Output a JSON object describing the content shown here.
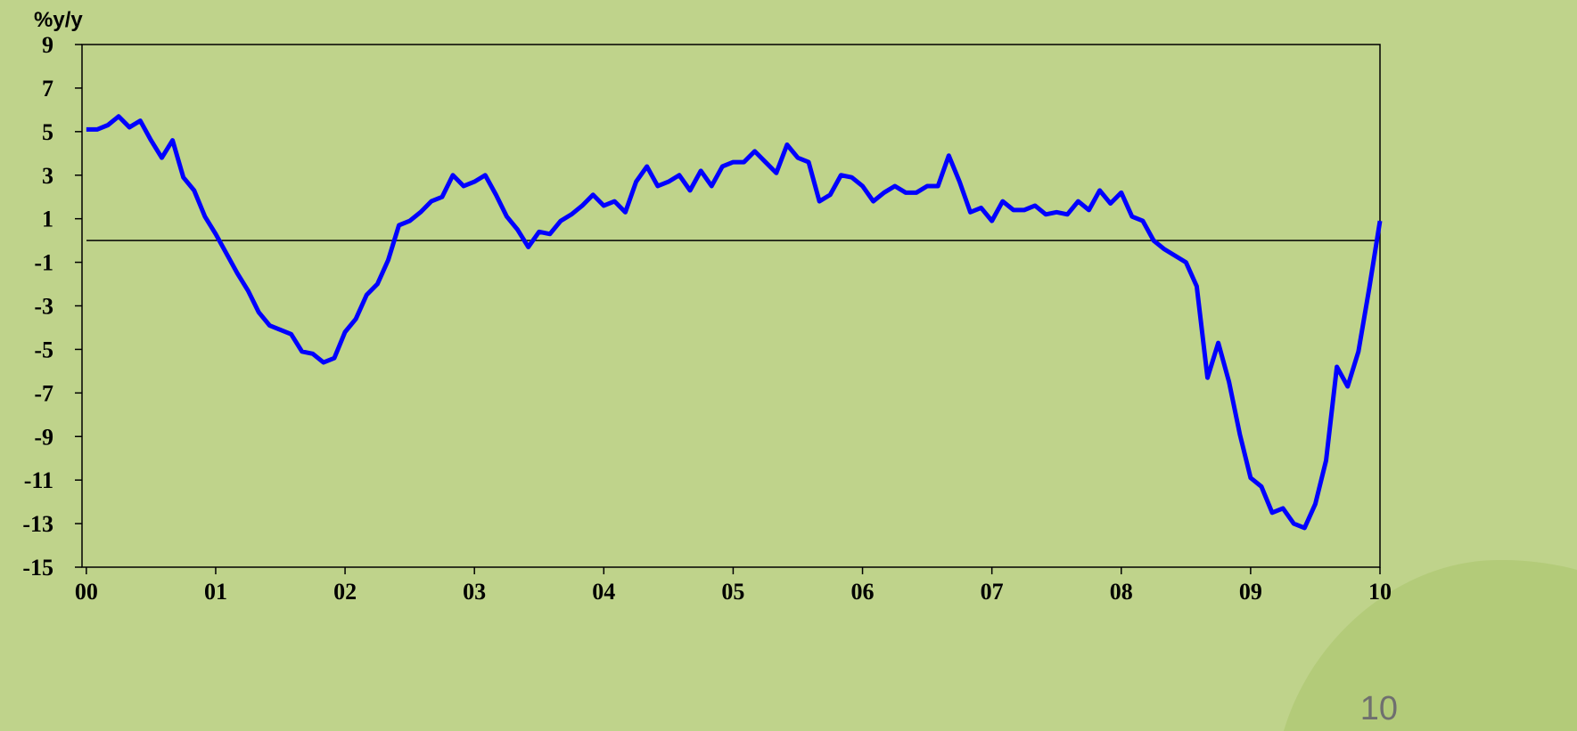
{
  "chart_data": {
    "type": "line",
    "y_label": "%y/y",
    "x": [
      0,
      1,
      2,
      3,
      4,
      5,
      6,
      7,
      8,
      9,
      10,
      11,
      12,
      13,
      14,
      15,
      16,
      17,
      18,
      19,
      20,
      21,
      22,
      23,
      24,
      25,
      26,
      27,
      28,
      29,
      30,
      31,
      32,
      33,
      34,
      35,
      36,
      37,
      38,
      39,
      40,
      41,
      42,
      43,
      44,
      45,
      46,
      47,
      48,
      49,
      50,
      51,
      52,
      53,
      54,
      55,
      56,
      57,
      58,
      59,
      60,
      61,
      62,
      63,
      64,
      65,
      66,
      67,
      68,
      69,
      70,
      71,
      72,
      73,
      74,
      75,
      76,
      77,
      78,
      79,
      80,
      81,
      82,
      83,
      84,
      85,
      86,
      87,
      88,
      89,
      90,
      91,
      92,
      93,
      94,
      95,
      96,
      97,
      98,
      99,
      100,
      101,
      102,
      103,
      104,
      105,
      106,
      107,
      108,
      109,
      110,
      111,
      112,
      113,
      114,
      115,
      116,
      117,
      118,
      119,
      120
    ],
    "series": [
      {
        "name": "%y/y",
        "color": "#0000ff",
        "values": [
          5.1,
          5.1,
          5.3,
          5.7,
          5.2,
          5.5,
          4.6,
          3.8,
          4.6,
          2.9,
          2.3,
          1.1,
          0.3,
          -0.6,
          -1.5,
          -2.3,
          -3.3,
          -3.9,
          -4.1,
          -4.3,
          -5.1,
          -5.2,
          -5.6,
          -5.4,
          -4.2,
          -3.6,
          -2.5,
          -2.0,
          -0.9,
          0.7,
          0.9,
          1.3,
          1.8,
          2.0,
          3.0,
          2.5,
          2.7,
          3.0,
          2.1,
          1.1,
          0.5,
          -0.3,
          0.4,
          0.3,
          0.9,
          1.2,
          1.6,
          2.1,
          1.6,
          1.8,
          1.3,
          2.7,
          3.4,
          2.5,
          2.7,
          3.0,
          2.3,
          3.2,
          2.5,
          3.4,
          3.6,
          3.6,
          4.1,
          3.6,
          3.1,
          4.4,
          3.8,
          3.6,
          1.8,
          2.1,
          3.0,
          2.9,
          2.5,
          1.8,
          2.2,
          2.5,
          2.2,
          2.2,
          2.5,
          2.5,
          3.9,
          2.7,
          1.3,
          1.5,
          0.9,
          1.8,
          1.4,
          1.4,
          1.6,
          1.2,
          1.3,
          1.2,
          1.8,
          1.4,
          2.3,
          1.7,
          2.2,
          1.1,
          0.9,
          0.0,
          -0.4,
          -0.7,
          -1.0,
          -2.1,
          -6.3,
          -4.7,
          -6.5,
          -8.9,
          -10.9,
          -11.3,
          -12.5,
          -12.3,
          -13.0,
          -13.2,
          -12.1,
          -10.1,
          -5.8,
          -6.7,
          -5.1,
          -2.2,
          0.9
        ]
      }
    ],
    "xlim": [
      -0.4,
      120
    ],
    "xticks": [
      {
        "value": 0,
        "label": "00"
      },
      {
        "value": 12,
        "label": "01"
      },
      {
        "value": 24,
        "label": "02"
      },
      {
        "value": 36,
        "label": "03"
      },
      {
        "value": 48,
        "label": "04"
      },
      {
        "value": 60,
        "label": "05"
      },
      {
        "value": 72,
        "label": "06"
      },
      {
        "value": 84,
        "label": "07"
      },
      {
        "value": 96,
        "label": "08"
      },
      {
        "value": 108,
        "label": "09"
      },
      {
        "value": 120,
        "label": "10"
      }
    ],
    "ylim": [
      -15,
      9
    ],
    "yticks": [
      9,
      7,
      5,
      3,
      1,
      -1,
      -3,
      -5,
      -7,
      -9,
      -11,
      -13,
      -15
    ],
    "reference_line": 0,
    "grid": false
  },
  "slide_number": "10"
}
